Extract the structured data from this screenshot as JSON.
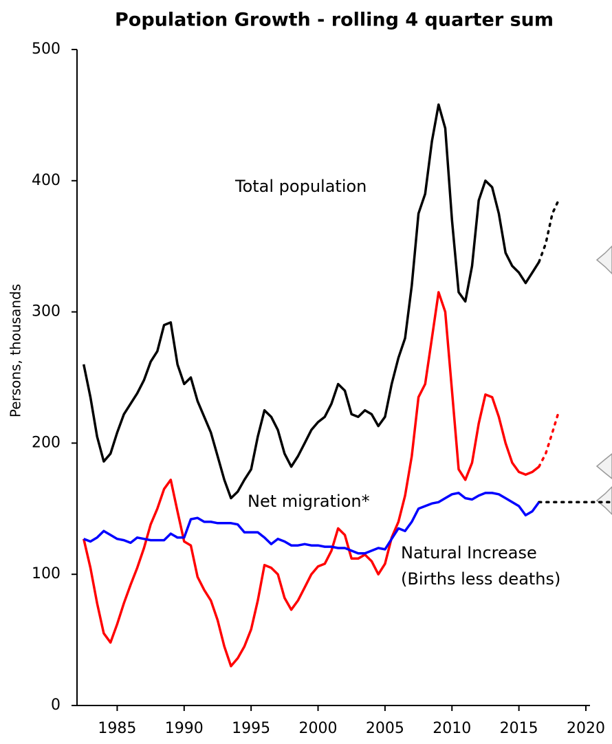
{
  "chart_data": {
    "type": "line",
    "title": "Population Growth - rolling 4 quarter sum",
    "y_label": "Persons, thousands",
    "x": [
      1982.5,
      1983,
      1983.5,
      1984,
      1984.5,
      1985,
      1985.5,
      1986,
      1986.5,
      1987,
      1987.5,
      1988,
      1988.5,
      1989,
      1989.5,
      1990,
      1990.5,
      1991,
      1991.5,
      1992,
      1992.5,
      1993,
      1993.5,
      1994,
      1994.5,
      1995,
      1995.5,
      1996,
      1996.5,
      1997,
      1997.5,
      1998,
      1998.5,
      1999,
      1999.5,
      2000,
      2000.5,
      2001,
      2001.5,
      2002,
      2002.5,
      2003,
      2003.5,
      2004,
      2004.5,
      2005,
      2005.5,
      2006,
      2006.5,
      2007,
      2007.5,
      2008,
      2008.5,
      2009,
      2009.5,
      2010,
      2010.5,
      2011,
      2011.5,
      2012,
      2012.5,
      2013,
      2013.5,
      2014,
      2014.5,
      2015,
      2015.5,
      2016,
      2016.5
    ],
    "series": [
      {
        "name": "Total population",
        "color": "#000000",
        "values": [
          260,
          235,
          205,
          186,
          192,
          208,
          222,
          230,
          238,
          248,
          262,
          270,
          290,
          292,
          260,
          245,
          250,
          232,
          220,
          208,
          190,
          172,
          158,
          163,
          172,
          180,
          205,
          225,
          220,
          210,
          192,
          182,
          190,
          200,
          210,
          216,
          220,
          230,
          245,
          240,
          222,
          220,
          225,
          222,
          213,
          220,
          245,
          265,
          280,
          320,
          375,
          390,
          430,
          458,
          440,
          370,
          315,
          308,
          335,
          385,
          400,
          395,
          375,
          345,
          335,
          330,
          322,
          330,
          338
        ]
      },
      {
        "name": "Net migration*",
        "color": "#ff0000",
        "values": [
          127,
          105,
          78,
          55,
          48,
          62,
          78,
          92,
          105,
          120,
          138,
          150,
          165,
          172,
          148,
          125,
          122,
          98,
          88,
          80,
          65,
          45,
          30,
          36,
          45,
          58,
          80,
          107,
          105,
          100,
          82,
          73,
          80,
          90,
          100,
          106,
          108,
          118,
          135,
          130,
          112,
          112,
          115,
          110,
          100,
          108,
          128,
          140,
          160,
          190,
          235,
          245,
          280,
          315,
          300,
          240,
          180,
          172,
          185,
          215,
          237,
          235,
          220,
          200,
          185,
          178,
          176,
          178,
          182
        ]
      },
      {
        "name": "Natural Increase",
        "color": "#0000ff",
        "values": [
          127,
          125,
          128,
          133,
          130,
          127,
          126,
          124,
          128,
          127,
          126,
          126,
          126,
          131,
          128,
          128,
          142,
          143,
          140,
          140,
          139,
          139,
          139,
          138,
          132,
          132,
          132,
          128,
          123,
          127,
          125,
          122,
          122,
          123,
          122,
          122,
          121,
          121,
          120,
          120,
          118,
          116,
          116,
          118,
          120,
          119,
          127,
          135,
          133,
          140,
          150,
          152,
          154,
          155,
          158,
          161,
          162,
          158,
          157,
          160,
          162,
          162,
          161,
          158,
          155,
          152,
          145,
          148,
          155
        ]
      }
    ],
    "projections": [
      {
        "color": "#000000",
        "style": "dotted",
        "x": [
          2016.5,
          2017,
          2017.5,
          2018
        ],
        "values": [
          338,
          352,
          375,
          386
        ]
      },
      {
        "color": "#ff0000",
        "style": "dotted",
        "x": [
          2016.5,
          2017,
          2017.5,
          2018
        ],
        "values": [
          182,
          192,
          208,
          225
        ]
      },
      {
        "color": "#000000",
        "style": "dotted",
        "x": [
          2016.5,
          2021.8
        ],
        "values": [
          155,
          155
        ]
      }
    ],
    "annotations": [
      "(Births less deaths)"
    ],
    "xlim": [
      1982,
      2020
    ],
    "xticks": [
      1985,
      1990,
      1995,
      2000,
      2005,
      2010,
      2015,
      2020
    ],
    "ylim": [
      0,
      500
    ],
    "yticks": [
      0,
      100,
      200,
      300,
      400,
      500
    ],
    "grid": false
  }
}
